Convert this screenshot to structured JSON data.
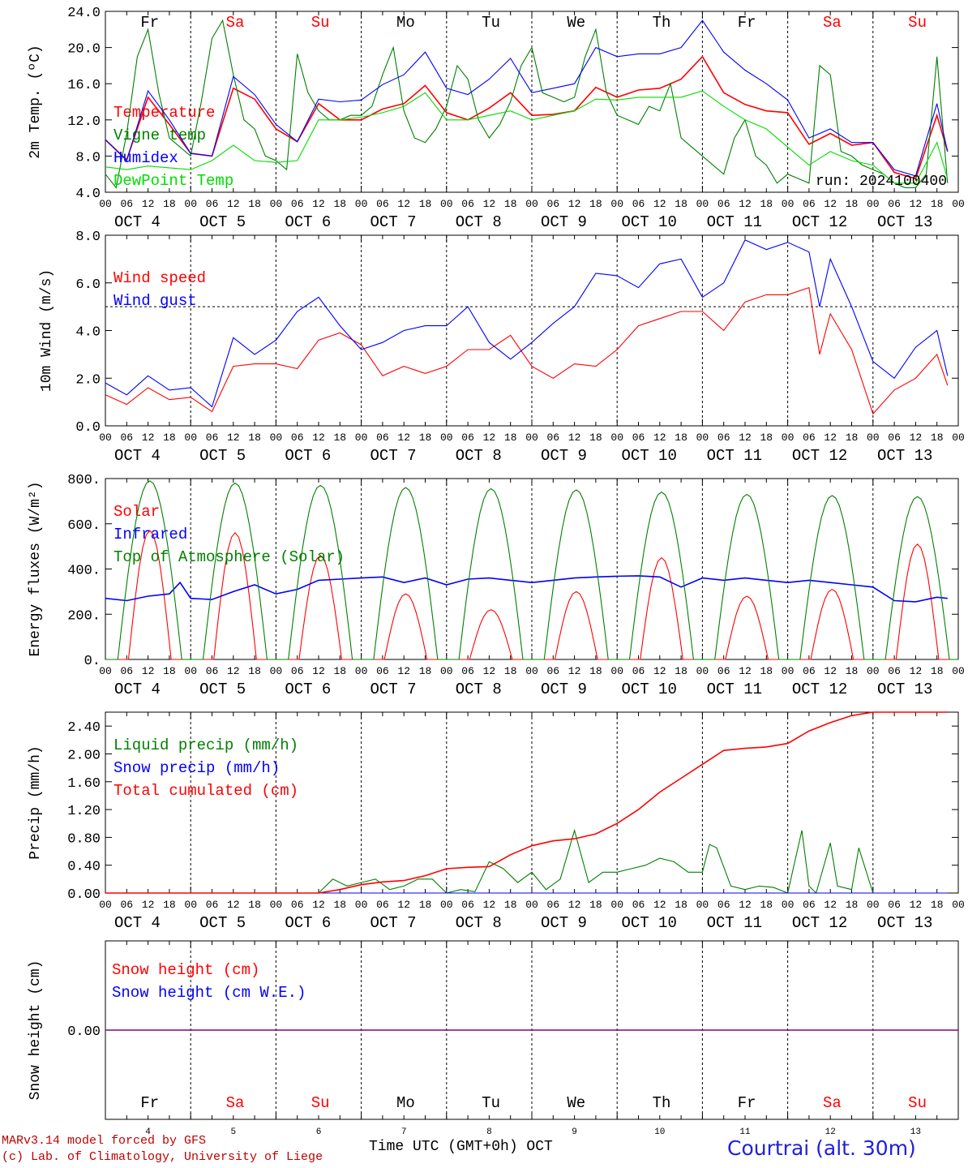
{
  "chart_data": [
    {
      "type": "line",
      "id": "temp",
      "ylabel": "2m Temp. (ºC)",
      "ylim": [
        4.0,
        24.0
      ],
      "yticks": [
        "4.0",
        "8.0",
        "12.0",
        "16.0",
        "20.0",
        "24.0"
      ],
      "run_label": "run: 2024100400",
      "series": [
        {
          "name": "Temperature",
          "color": "#ff0000",
          "x": [
            0,
            6,
            12,
            18,
            24,
            30,
            36,
            42,
            48,
            54,
            60,
            66,
            72,
            78,
            84,
            90,
            96,
            102,
            108,
            114,
            120,
            126,
            132,
            138,
            144,
            150,
            156,
            162,
            168,
            174,
            180,
            186,
            192,
            198,
            204,
            210,
            216,
            222,
            228,
            234,
            237
          ],
          "values": [
            9.8,
            7.6,
            14.5,
            11.5,
            8.3,
            8.0,
            15.5,
            14.3,
            11.0,
            9.6,
            13.8,
            12.0,
            12.0,
            13.2,
            13.8,
            15.8,
            12.8,
            12.0,
            13.3,
            15.0,
            12.5,
            12.6,
            13.0,
            15.6,
            14.5,
            15.3,
            15.5,
            16.5,
            19.0,
            15.0,
            13.7,
            13.0,
            12.8,
            9.3,
            10.5,
            9.2,
            9.5,
            6.2,
            5.5,
            12.5,
            8.5
          ]
        },
        {
          "name": "Vigne temp",
          "color": "#008000",
          "x": [
            0,
            3,
            6,
            9,
            12,
            15,
            18,
            21,
            24,
            27,
            30,
            33,
            36,
            39,
            42,
            45,
            48,
            51,
            54,
            57,
            60,
            63,
            66,
            69,
            72,
            75,
            78,
            81,
            84,
            87,
            90,
            93,
            96,
            99,
            102,
            105,
            108,
            111,
            114,
            117,
            120,
            123,
            126,
            129,
            132,
            135,
            138,
            141,
            144,
            147,
            150,
            153,
            156,
            159,
            162,
            165,
            168,
            171,
            174,
            177,
            180,
            183,
            186,
            189,
            192,
            195,
            198,
            201,
            204,
            207,
            210,
            213,
            216,
            219,
            222,
            225,
            228,
            231,
            234,
            237
          ],
          "values": [
            6.0,
            4.5,
            10.5,
            19.0,
            22.0,
            15.0,
            10.0,
            9.0,
            8.0,
            14.0,
            21.0,
            23.0,
            17.0,
            12.0,
            11.0,
            8.0,
            7.5,
            6.5,
            19.3,
            15.0,
            13.0,
            12.0,
            12.0,
            12.5,
            12.5,
            13.5,
            17.0,
            20.0,
            13.0,
            10.0,
            9.5,
            11.0,
            13.5,
            18.0,
            16.5,
            12.0,
            10.0,
            11.5,
            14.0,
            18.0,
            20.0,
            15.0,
            14.5,
            14.0,
            14.5,
            19.0,
            22.0,
            15.0,
            12.5,
            12.0,
            11.5,
            13.5,
            13.0,
            16.0,
            10.0,
            9.0,
            8.0,
            7.0,
            6.0,
            10.0,
            12.0,
            8.0,
            7.0,
            5.0,
            6.0,
            5.5,
            5.0,
            18.0,
            17.0,
            8.5,
            8.0,
            7.0,
            6.5,
            6.0,
            5.0,
            4.5,
            4.5,
            6.0,
            19.0,
            5.0
          ]
        },
        {
          "name": "Humidex",
          "color": "#0000ff",
          "x": [
            0,
            6,
            12,
            18,
            24,
            30,
            36,
            42,
            48,
            54,
            60,
            66,
            72,
            78,
            84,
            90,
            96,
            102,
            108,
            114,
            120,
            126,
            132,
            138,
            144,
            150,
            156,
            162,
            168,
            174,
            180,
            186,
            192,
            198,
            204,
            210,
            216,
            222,
            228,
            234,
            237
          ],
          "values": [
            9.8,
            7.5,
            15.2,
            12.0,
            8.3,
            8.0,
            16.8,
            14.8,
            11.5,
            9.6,
            14.3,
            14.0,
            14.2,
            15.9,
            17.0,
            19.5,
            15.5,
            14.8,
            16.5,
            18.8,
            15.0,
            15.5,
            16.0,
            20.0,
            19.0,
            19.3,
            19.3,
            20.0,
            23.0,
            19.5,
            17.5,
            16.0,
            14.2,
            10.0,
            11.0,
            9.5,
            9.5,
            6.5,
            5.8,
            13.8,
            8.5
          ]
        },
        {
          "name": "DewPoint Temp",
          "color": "#00dd00",
          "x": [
            0,
            6,
            12,
            18,
            24,
            30,
            36,
            42,
            48,
            54,
            60,
            66,
            72,
            78,
            84,
            90,
            96,
            102,
            108,
            114,
            120,
            126,
            132,
            138,
            144,
            150,
            156,
            162,
            168,
            174,
            180,
            186,
            192,
            198,
            204,
            210,
            216,
            222,
            228,
            234,
            237
          ],
          "values": [
            6.8,
            6.5,
            6.9,
            6.7,
            6.5,
            7.5,
            9.2,
            7.5,
            7.3,
            7.5,
            12.0,
            12.0,
            12.3,
            12.8,
            13.5,
            15.0,
            12.0,
            12.0,
            12.5,
            13.0,
            12.0,
            12.5,
            13.0,
            14.3,
            14.2,
            14.5,
            14.5,
            14.5,
            15.2,
            13.5,
            12.0,
            11.0,
            9.0,
            7.0,
            8.5,
            7.5,
            7.0,
            5.0,
            5.0,
            9.5,
            5.5
          ]
        }
      ]
    },
    {
      "type": "line",
      "id": "wind",
      "ylabel": "10m Wind (m/s)",
      "ylim": [
        0.0,
        8.0
      ],
      "yticks": [
        "0.0",
        "2.0",
        "4.0",
        "6.0",
        "8.0"
      ],
      "reference_line": 5.0,
      "series": [
        {
          "name": "Wind speed",
          "color": "#ff0000",
          "x": [
            0,
            6,
            12,
            18,
            24,
            30,
            36,
            42,
            48,
            54,
            60,
            66,
            72,
            78,
            84,
            90,
            96,
            102,
            108,
            114,
            120,
            126,
            132,
            138,
            144,
            150,
            156,
            162,
            168,
            174,
            180,
            186,
            192,
            198,
            201,
            204,
            210,
            216,
            222,
            228,
            234,
            237
          ],
          "values": [
            1.3,
            0.9,
            1.6,
            1.1,
            1.2,
            0.6,
            2.5,
            2.6,
            2.6,
            2.4,
            3.6,
            3.9,
            3.4,
            2.1,
            2.5,
            2.2,
            2.5,
            3.2,
            3.2,
            3.8,
            2.5,
            2.0,
            2.6,
            2.5,
            3.2,
            4.2,
            4.5,
            4.8,
            4.8,
            4.0,
            5.2,
            5.5,
            5.5,
            5.8,
            3.0,
            4.7,
            3.2,
            0.5,
            1.5,
            2.0,
            3.0,
            1.7
          ]
        },
        {
          "name": "Wind gust",
          "color": "#0000ff",
          "x": [
            0,
            6,
            12,
            18,
            24,
            30,
            36,
            42,
            48,
            54,
            60,
            66,
            72,
            78,
            84,
            90,
            96,
            102,
            108,
            114,
            120,
            126,
            132,
            138,
            144,
            150,
            156,
            162,
            168,
            174,
            180,
            186,
            192,
            198,
            201,
            204,
            210,
            216,
            222,
            228,
            234,
            237
          ],
          "values": [
            1.8,
            1.3,
            2.1,
            1.5,
            1.6,
            0.8,
            3.7,
            3.0,
            3.6,
            4.8,
            5.4,
            4.2,
            3.2,
            3.5,
            4.0,
            4.2,
            4.2,
            5.0,
            3.5,
            2.8,
            3.5,
            4.3,
            5.0,
            6.4,
            6.3,
            5.8,
            6.8,
            7.0,
            5.4,
            6.0,
            7.8,
            7.4,
            7.7,
            7.3,
            5.0,
            7.0,
            5.0,
            2.7,
            2.0,
            3.3,
            4.0,
            2.1
          ]
        }
      ]
    },
    {
      "type": "line",
      "id": "energy",
      "ylabel": "Energy fluxes (W/m²)",
      "ylim": [
        0,
        800
      ],
      "yticks": [
        "0.",
        "200.",
        "400.",
        "600.",
        "800."
      ],
      "series": [
        {
          "name": "Solar",
          "color": "#ff0000",
          "day_peaks": [
            570,
            560,
            460,
            290,
            220,
            300,
            450,
            280,
            310,
            510
          ]
        },
        {
          "name": "Infrared",
          "color": "#0000ff",
          "x": [
            0,
            6,
            12,
            18,
            21,
            24,
            30,
            36,
            42,
            48,
            54,
            60,
            66,
            72,
            78,
            84,
            90,
            96,
            102,
            108,
            114,
            120,
            126,
            132,
            138,
            144,
            150,
            156,
            162,
            168,
            174,
            180,
            186,
            192,
            198,
            204,
            210,
            216,
            222,
            228,
            234,
            237
          ],
          "values": [
            270,
            260,
            280,
            290,
            340,
            270,
            265,
            300,
            330,
            290,
            310,
            350,
            355,
            360,
            365,
            340,
            360,
            330,
            355,
            360,
            350,
            340,
            350,
            360,
            365,
            368,
            370,
            365,
            320,
            360,
            350,
            360,
            350,
            340,
            350,
            340,
            330,
            320,
            260,
            255,
            275,
            270
          ]
        },
        {
          "name": "Top of Atmosphere (Solar)",
          "color": "#008000",
          "day_peaks": [
            790,
            780,
            770,
            760,
            755,
            750,
            740,
            730,
            725,
            720
          ]
        }
      ]
    },
    {
      "type": "line",
      "id": "precip",
      "ylabel": "Precip (mm/h)",
      "ylim": [
        0.0,
        2.6
      ],
      "yticks": [
        "0.00",
        "0.40",
        "0.80",
        "1.20",
        "1.60",
        "2.00",
        "2.40"
      ],
      "series": [
        {
          "name": "Liquid precip (mm/h)",
          "color": "#008000",
          "x": [
            0,
            60,
            64,
            68,
            72,
            76,
            80,
            84,
            88,
            92,
            96,
            100,
            104,
            108,
            112,
            116,
            120,
            124,
            128,
            132,
            136,
            140,
            144,
            148,
            152,
            156,
            160,
            164,
            168,
            170,
            172,
            176,
            180,
            184,
            188,
            192,
            196,
            198,
            200,
            204,
            206,
            210,
            212,
            216,
            220,
            237
          ],
          "values": [
            0,
            0,
            0.2,
            0.1,
            0.15,
            0.2,
            0.05,
            0.1,
            0.2,
            0.2,
            0.0,
            0.05,
            0.02,
            0.45,
            0.35,
            0.15,
            0.3,
            0.05,
            0.2,
            0.9,
            0.15,
            0.3,
            0.3,
            0.35,
            0.4,
            0.5,
            0.45,
            0.3,
            0.3,
            0.7,
            0.65,
            0.1,
            0.05,
            0.1,
            0.08,
            0.0,
            0.9,
            0.1,
            0.0,
            0.72,
            0.1,
            0.05,
            0.65,
            0.0,
            0.0,
            0.0
          ]
        },
        {
          "name": "Snow precip (mm/h)",
          "color": "#0000ff",
          "x": [
            0,
            237
          ],
          "values": [
            0,
            0
          ]
        },
        {
          "name": "Total cumulated (cm)",
          "color": "#ff0000",
          "x": [
            0,
            60,
            66,
            72,
            78,
            84,
            90,
            96,
            102,
            108,
            114,
            120,
            126,
            132,
            138,
            144,
            150,
            156,
            162,
            168,
            174,
            180,
            186,
            192,
            198,
            204,
            210,
            216,
            237
          ],
          "values": [
            0,
            0,
            0.05,
            0.12,
            0.16,
            0.18,
            0.25,
            0.35,
            0.37,
            0.38,
            0.55,
            0.68,
            0.75,
            0.78,
            0.85,
            1.0,
            1.2,
            1.45,
            1.65,
            1.85,
            2.05,
            2.08,
            2.1,
            2.15,
            2.33,
            2.45,
            2.55,
            2.6,
            2.6
          ]
        }
      ]
    },
    {
      "type": "line",
      "id": "snow",
      "ylabel": "Snow height (cm)",
      "ylim": [
        -1,
        1
      ],
      "yticks": [
        "0.00"
      ],
      "series": [
        {
          "name": "Snow height (cm)",
          "color": "#ff0000",
          "x": [
            0,
            237
          ],
          "values": [
            0,
            0
          ]
        },
        {
          "name": "Snow height (cm W.E.)",
          "color": "#0000ff",
          "x": [
            0,
            237
          ],
          "values": [
            0,
            0
          ]
        }
      ]
    }
  ],
  "axis": {
    "hour_ticks": [
      "00",
      "06",
      "12",
      "18"
    ],
    "dates": [
      "OCT  4",
      "OCT  5",
      "OCT  6",
      "OCT  7",
      "OCT  8",
      "OCT  9",
      "OCT 10",
      "OCT 11",
      "OCT 12",
      "OCT 13"
    ],
    "weekdays": [
      "Fr",
      "Sa",
      "Su",
      "Mo",
      "Tu",
      "We",
      "Th",
      "Fr",
      "Sa",
      "Su"
    ],
    "weekday_colors": [
      "#000000",
      "#ff0000",
      "#ff0000",
      "#000000",
      "#000000",
      "#000000",
      "#000000",
      "#000000",
      "#ff0000",
      "#ff0000"
    ],
    "day_numbers": [
      "4",
      "5",
      "6",
      "7",
      "8",
      "9",
      "10",
      "11",
      "12",
      "13"
    ],
    "time_label": "Time UTC (GMT+0h) OCT"
  },
  "footer": {
    "model": "MARv3.14 model forced by GFS",
    "copyright": "(c) Lab. of Climatology, University of Liege",
    "station": "Courtrai (alt. 30m)"
  }
}
